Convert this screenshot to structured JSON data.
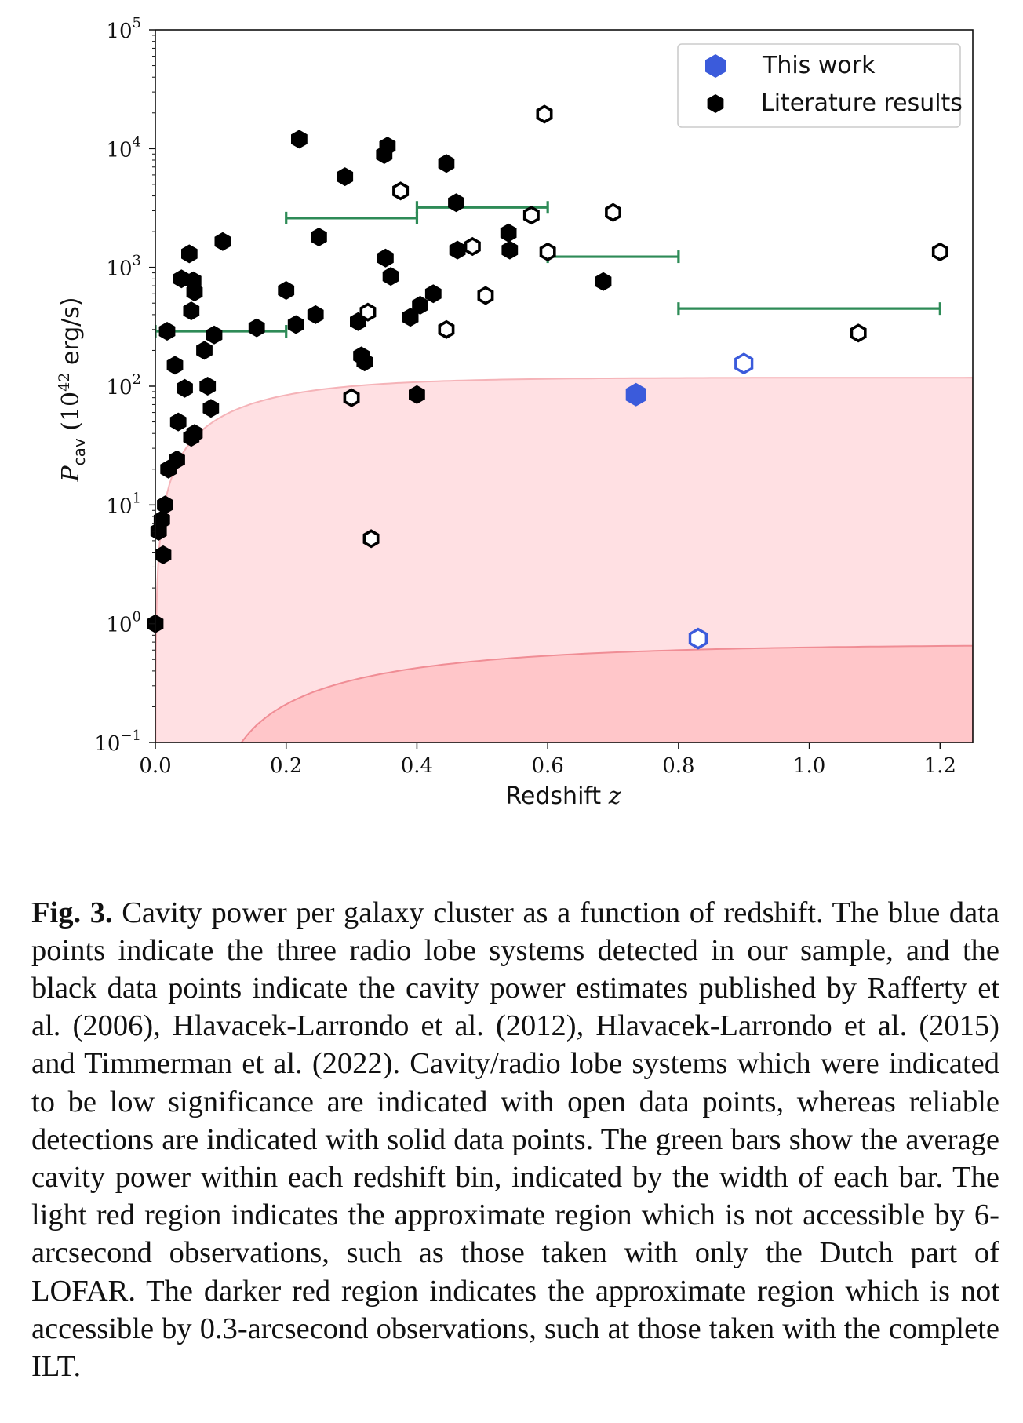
{
  "figure": {
    "legend": {
      "this_work": "This work",
      "literature": "Literature results"
    },
    "colors": {
      "this_work": "#3b5bdb",
      "literature": "#000000",
      "bins": "#2e8b57",
      "light_red": "#ffe0e3",
      "dark_red": "#ffc6c9"
    }
  },
  "chart_data": {
    "type": "scatter",
    "xlabel": "Redshift",
    "xlabel_var": "z",
    "ylabel_main": "P",
    "ylabel_sub": "cav",
    "ylabel_paren_open": "(10",
    "ylabel_exp": "42",
    "ylabel_unit": "erg/s)",
    "xlim": [
      0.0,
      1.25
    ],
    "ylim": [
      0.1,
      100000
    ],
    "yscale": "log",
    "legend_position": "top-right",
    "x_ticks": [
      "0.0",
      "0.2",
      "0.4",
      "0.6",
      "0.8",
      "1.0",
      "1.2"
    ],
    "y_ticks": [
      {
        "base": "10",
        "exp": "5"
      },
      {
        "base": "10",
        "exp": "4"
      },
      {
        "base": "10",
        "exp": "3"
      },
      {
        "base": "10",
        "exp": "2"
      },
      {
        "base": "10",
        "exp": "1"
      },
      {
        "base": "10",
        "exp": "0"
      },
      {
        "base": "10",
        "exp": "−1"
      }
    ],
    "this_work": [
      {
        "x": 0.735,
        "y": 85,
        "open": false
      },
      {
        "x": 0.9,
        "y": 155,
        "open": true
      },
      {
        "x": 0.83,
        "y": 0.75,
        "open": true
      }
    ],
    "literature_solid": [
      [
        0.0,
        1.0
      ],
      [
        0.005,
        6
      ],
      [
        0.01,
        7.5
      ],
      [
        0.015,
        10
      ],
      [
        0.012,
        3.8
      ],
      [
        0.02,
        20
      ],
      [
        0.018,
        290
      ],
      [
        0.03,
        150
      ],
      [
        0.033,
        24
      ],
      [
        0.035,
        50
      ],
      [
        0.04,
        800
      ],
      [
        0.045,
        96
      ],
      [
        0.052,
        1300
      ],
      [
        0.055,
        37
      ],
      [
        0.06,
        40
      ],
      [
        0.055,
        430
      ],
      [
        0.058,
        770
      ],
      [
        0.06,
        620
      ],
      [
        0.075,
        200
      ],
      [
        0.08,
        100
      ],
      [
        0.085,
        65
      ],
      [
        0.09,
        270
      ],
      [
        0.103,
        1650
      ],
      [
        0.155,
        310
      ],
      [
        0.2,
        640
      ],
      [
        0.215,
        330
      ],
      [
        0.22,
        12000
      ],
      [
        0.245,
        400
      ],
      [
        0.25,
        1800
      ],
      [
        0.29,
        5800
      ],
      [
        0.31,
        350
      ],
      [
        0.315,
        180
      ],
      [
        0.32,
        160
      ],
      [
        0.35,
        8900
      ],
      [
        0.352,
        1200
      ],
      [
        0.355,
        10500
      ],
      [
        0.36,
        840
      ],
      [
        0.39,
        380
      ],
      [
        0.4,
        85
      ],
      [
        0.405,
        480
      ],
      [
        0.425,
        600
      ],
      [
        0.445,
        7500
      ],
      [
        0.46,
        3500
      ],
      [
        0.462,
        1400
      ],
      [
        0.54,
        1950
      ],
      [
        0.542,
        1400
      ],
      [
        0.685,
        760
      ]
    ],
    "literature_open": [
      [
        0.595,
        19500
      ],
      [
        0.375,
        4400
      ],
      [
        0.575,
        2750
      ],
      [
        0.7,
        2900
      ],
      [
        0.485,
        1500
      ],
      [
        0.6,
        1350
      ],
      [
        0.505,
        580
      ],
      [
        0.325,
        420
      ],
      [
        0.445,
        300
      ],
      [
        0.3,
        80
      ],
      [
        0.33,
        5.2
      ],
      [
        1.075,
        280
      ],
      [
        1.2,
        1350
      ]
    ],
    "bins": [
      {
        "x0": 0.0,
        "x1": 0.2,
        "y": 290
      },
      {
        "x0": 0.2,
        "x1": 0.4,
        "y": 2600
      },
      {
        "x0": 0.4,
        "x1": 0.6,
        "y": 3200
      },
      {
        "x0": 0.6,
        "x1": 0.8,
        "y": 1230
      },
      {
        "x0": 0.8,
        "x1": 1.2,
        "y": 450
      }
    ],
    "regions": [
      {
        "name": "6-arcsecond limit",
        "shade": "light",
        "y_max": 118
      },
      {
        "name": "0.3-arcsecond limit",
        "shade": "dark",
        "y_max": 0.67
      }
    ]
  },
  "caption": {
    "label": "Fig. 3.",
    "text": "Cavity power per galaxy cluster as a function of redshift. The blue data points indicate the three radio lobe systems detected in our sample, and the black data points indicate the cavity power estimates published by Rafferty et al. (2006), Hlavacek-Larrondo et al. (2012), Hlavacek-Larrondo et al. (2015) and Timmerman et al. (2022). Cavity/radio lobe systems which were indicated to be low significance are indicated with open data points, whereas reliable detections are indicated with solid data points. The green bars show the average cavity power within each redshift bin, indicated by the width of each bar. The light red region indicates the approximate region which is not accessible by 6-arcsecond observations, such as those taken with only the Dutch part of LOFAR. The darker red region indicates the approximate region which is not accessible by 0.3-arcsecond observations, such at those taken with the complete ILT."
  }
}
